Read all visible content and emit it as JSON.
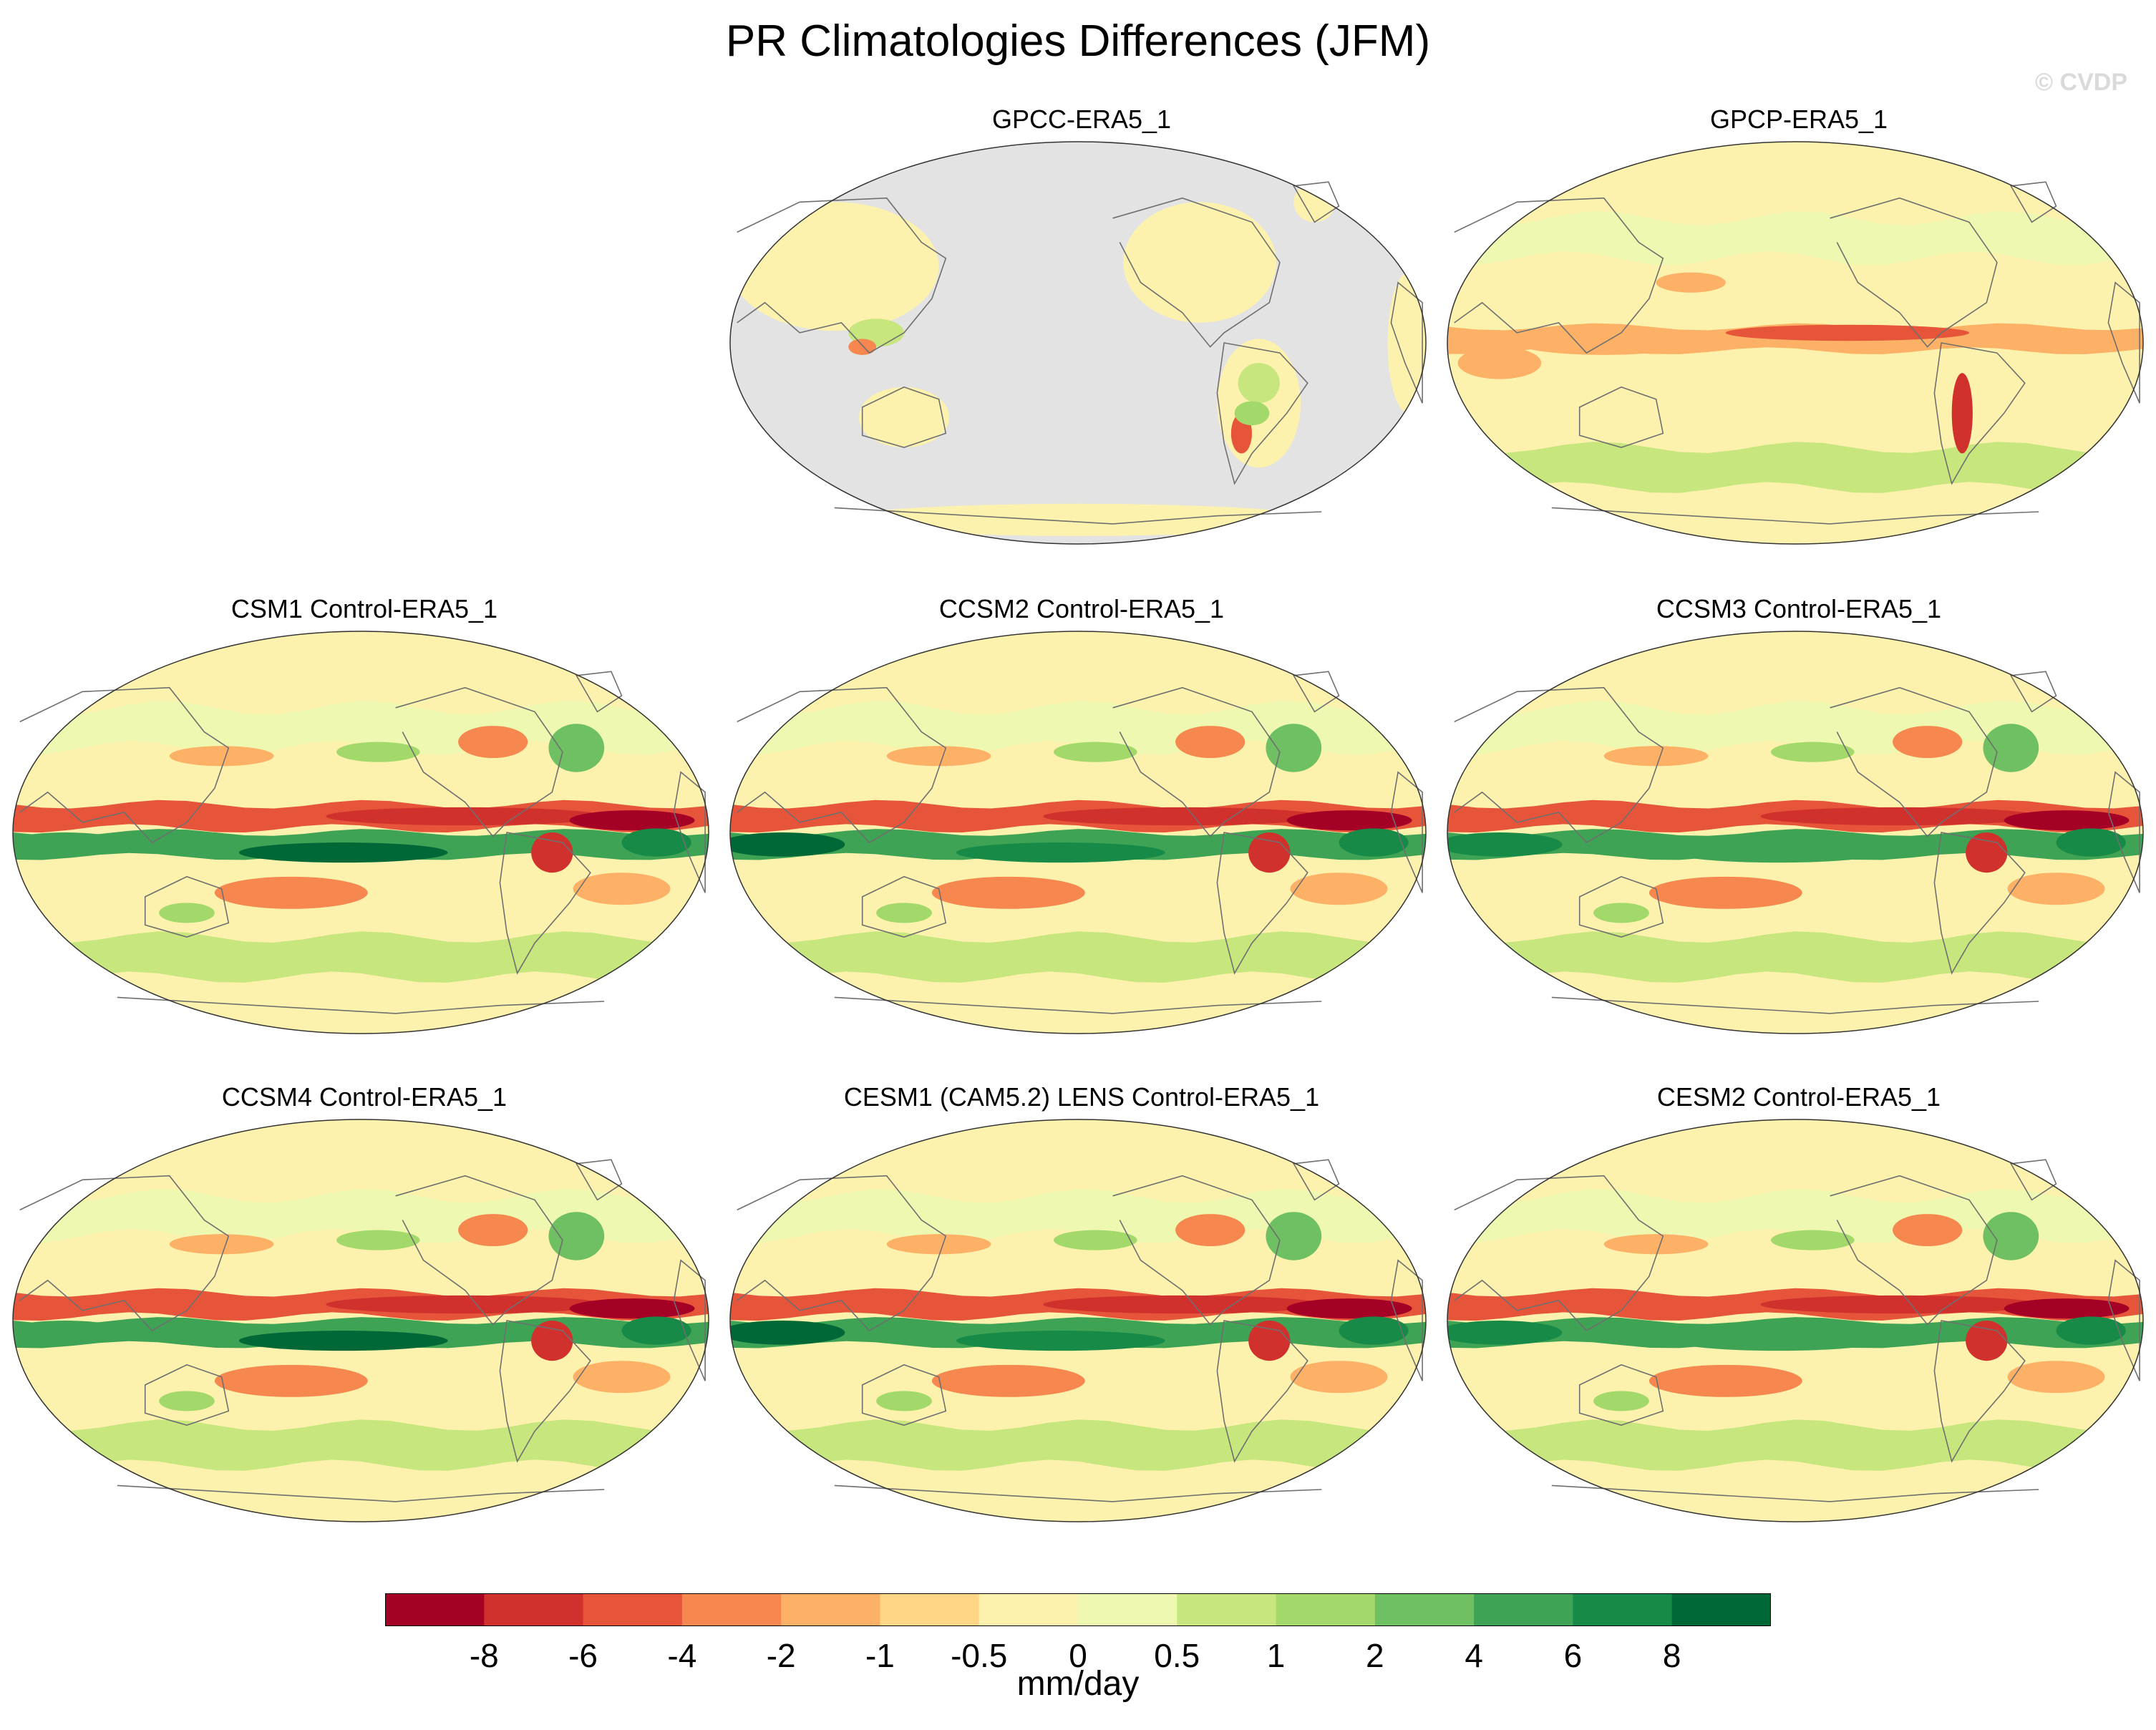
{
  "title": "PR Climatologies Differences (JFM)",
  "watermark": "© CVDP",
  "panels": [
    {
      "title": "GPCC-ERA5_1",
      "row": 0,
      "col": 1,
      "variant": "land"
    },
    {
      "title": "GPCP-ERA5_1",
      "row": 0,
      "col": 2,
      "variant": "obs"
    },
    {
      "title": "CSM1 Control-ERA5_1",
      "row": 1,
      "col": 0,
      "variant": "model"
    },
    {
      "title": "CCSM2 Control-ERA5_1",
      "row": 1,
      "col": 1,
      "variant": "model"
    },
    {
      "title": "CCSM3 Control-ERA5_1",
      "row": 1,
      "col": 2,
      "variant": "model"
    },
    {
      "title": "CCSM4 Control-ERA5_1",
      "row": 2,
      "col": 0,
      "variant": "model"
    },
    {
      "title": "CESM1 (CAM5.2) LENS Control-ERA5_1",
      "row": 2,
      "col": 1,
      "variant": "model"
    },
    {
      "title": "CESM2 Control-ERA5_1",
      "row": 2,
      "col": 2,
      "variant": "model"
    }
  ],
  "colorbar": {
    "units": "mm/day",
    "tick_labels": [
      "-8",
      "-6",
      "-4",
      "-2",
      "-1",
      "-0.5",
      "0",
      "0.5",
      "1",
      "2",
      "4",
      "6",
      "8"
    ],
    "colors": [
      "#a50026",
      "#d0312d",
      "#e6553a",
      "#f6874f",
      "#fdb166",
      "#fed686",
      "#fdf2ad",
      "#eef8b0",
      "#c7e67e",
      "#a3d86a",
      "#6fc062",
      "#3ea354",
      "#178a47",
      "#006837"
    ],
    "land_mask_color": "#e3e3e3"
  }
}
